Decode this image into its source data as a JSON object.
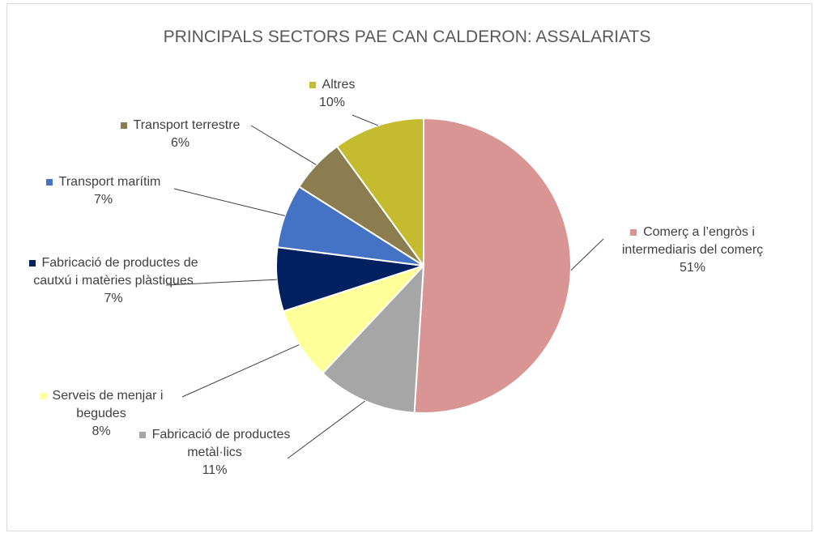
{
  "chart_data": {
    "type": "pie",
    "title": "PRINCIPALS SECTORS PAE CAN CALDERON: ASSALARIATS",
    "categories": [
      "Comerç a l’engròs i intermediaris del comerç",
      "Fabricació de productes metàl·lics",
      "Serveis de menjar i begudes",
      "Fabricació de productes de cautxú i matèries plàstiques",
      "Transport marítim",
      "Transport terrestre",
      "Altres"
    ],
    "values": [
      51,
      11,
      8,
      7,
      7,
      6,
      10
    ],
    "value_labels": [
      "51%",
      "11%",
      "8%",
      "7%",
      "7%",
      "6%",
      "10%"
    ],
    "colors": [
      "#d99594",
      "#a6a6a6",
      "#ffff99",
      "#002060",
      "#4472c4",
      "#8b7d4f",
      "#c4bc2e"
    ]
  }
}
